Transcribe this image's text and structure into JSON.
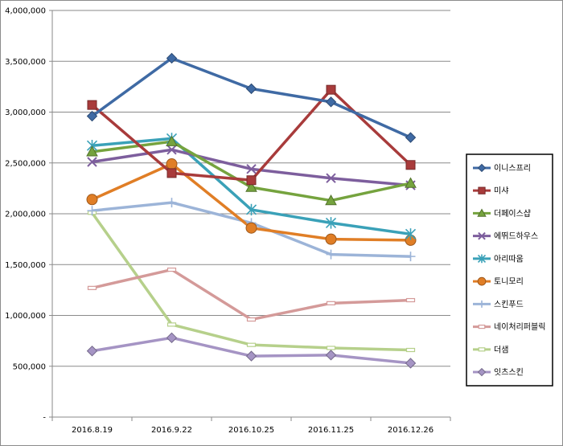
{
  "chart_data": {
    "type": "line",
    "title": "",
    "xlabel": "",
    "ylabel": "",
    "categories": [
      "2016.8.19",
      "2016.9.22",
      "2016.10.25",
      "2016.11.25",
      "2016.12.26"
    ],
    "ylim": [
      0,
      4000000
    ],
    "ytick_values": [
      0,
      500000,
      1000000,
      1500000,
      2000000,
      2500000,
      3000000,
      3500000,
      4000000
    ],
    "ytick_labels": [
      "-",
      "500,000",
      "1,000,000",
      "1,500,000",
      "2,000,000",
      "2,500,000",
      "3,000,000",
      "3,500,000",
      "4,000,000"
    ],
    "grid": "horizontal",
    "legend": "right",
    "series": [
      {
        "name": "이니스프리",
        "color": "#3F6AA4",
        "marker": "diamond",
        "values": [
          2960000,
          3530000,
          3230000,
          3100000,
          2750000
        ]
      },
      {
        "name": "미샤",
        "color": "#A83B3B",
        "marker": "square",
        "values": [
          3070000,
          2400000,
          2330000,
          3220000,
          2480000
        ]
      },
      {
        "name": "더페이스샵",
        "color": "#75A33E",
        "marker": "triangle",
        "values": [
          2610000,
          2710000,
          2260000,
          2130000,
          2300000
        ]
      },
      {
        "name": "에뛰드하우스",
        "color": "#7D5E9D",
        "marker": "x",
        "values": [
          2510000,
          2630000,
          2440000,
          2350000,
          2280000
        ]
      },
      {
        "name": "아리따움",
        "color": "#3AA1B8",
        "marker": "star",
        "values": [
          2670000,
          2740000,
          2040000,
          1910000,
          1800000
        ]
      },
      {
        "name": "토니모리",
        "color": "#E07E26",
        "marker": "circle",
        "values": [
          2140000,
          2490000,
          1860000,
          1750000,
          1740000
        ]
      },
      {
        "name": "스킨푸드",
        "color": "#9CB4D8",
        "marker": "plus",
        "values": [
          2030000,
          2110000,
          1910000,
          1600000,
          1580000
        ]
      },
      {
        "name": "네이처리퍼블릭",
        "color": "#D49A99",
        "marker": "dash",
        "values": [
          1270000,
          1450000,
          960000,
          1120000,
          1150000
        ]
      },
      {
        "name": "더샘",
        "color": "#B6D08B",
        "marker": "dash",
        "values": [
          2010000,
          910000,
          710000,
          680000,
          660000
        ]
      },
      {
        "name": "잇츠스킨",
        "color": "#A594C4",
        "marker": "diamond",
        "values": [
          650000,
          780000,
          600000,
          610000,
          530000
        ]
      }
    ]
  }
}
